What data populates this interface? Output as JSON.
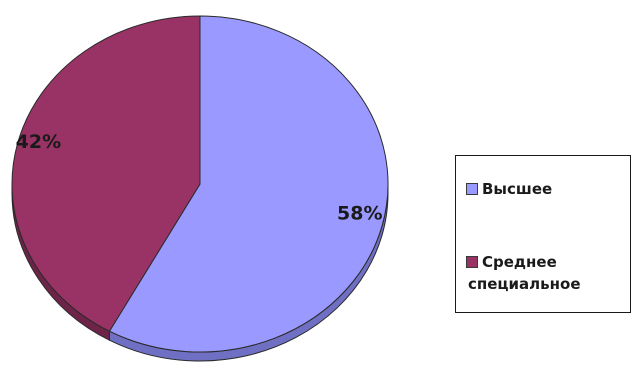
{
  "chart_data": {
    "type": "pie",
    "title": "",
    "start_angle_deg": 0,
    "direction": "clockwise",
    "slices": [
      {
        "label": "Высшее",
        "value": 58,
        "data_label": "58%",
        "color": "#9999ff",
        "shade": "#6f6fc4"
      },
      {
        "label": "Среднее специальное",
        "value": 42,
        "data_label": "42%",
        "color": "#993366",
        "shade": "#6e2449"
      }
    ],
    "legend": {
      "placement": "right",
      "entries": [
        {
          "lines": [
            "Высшее"
          ],
          "color": "#9999ff"
        },
        {
          "lines": [
            "Среднее",
            "специальное"
          ],
          "color": "#993366"
        }
      ]
    }
  }
}
